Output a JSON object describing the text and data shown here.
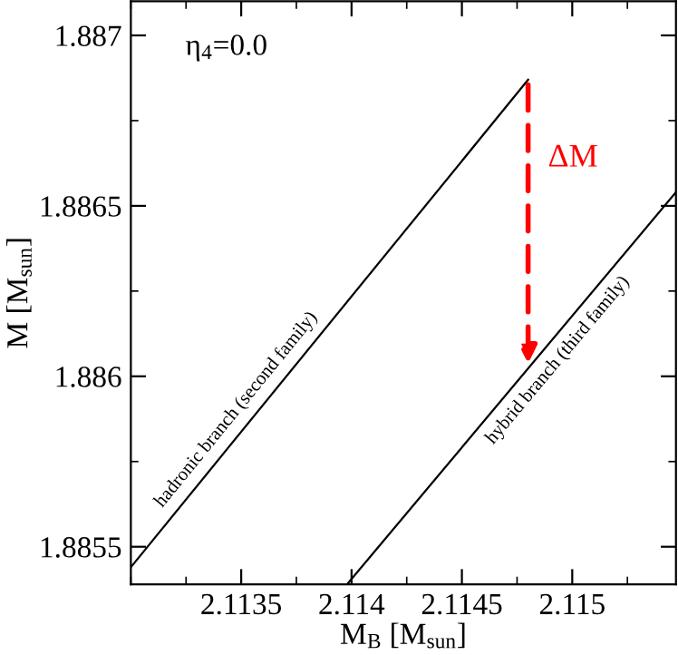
{
  "chart_data": {
    "type": "line",
    "xlabel": "M$_{B}$ [M$_{sun}$]",
    "ylabel": "M [M$_{sun}$]",
    "series": [
      {
        "name": "hadronic branch (second family)",
        "color": "#000000",
        "x": [
          2.113,
          2.1148
        ],
        "values": [
          1.88544,
          1.88687
        ]
      },
      {
        "name": "hybrid branch (third family)",
        "color": "#000000",
        "x": [
          2.11398,
          2.11547
        ],
        "values": [
          1.88539,
          1.88654
        ]
      }
    ],
    "annotations": [
      "η$_{4}$=0.0",
      "ΔM"
    ],
    "xlim": [
      2.113,
      2.11547
    ],
    "ylim": [
      1.88539,
      1.8871
    ],
    "xticks": [
      2.1135,
      2.114,
      2.1145,
      2.115
    ],
    "yticks": [
      1.8855,
      1.886,
      1.8865,
      1.887
    ],
    "grid": false,
    "legend": false,
    "marker": "none",
    "line_style": "solid"
  }
}
